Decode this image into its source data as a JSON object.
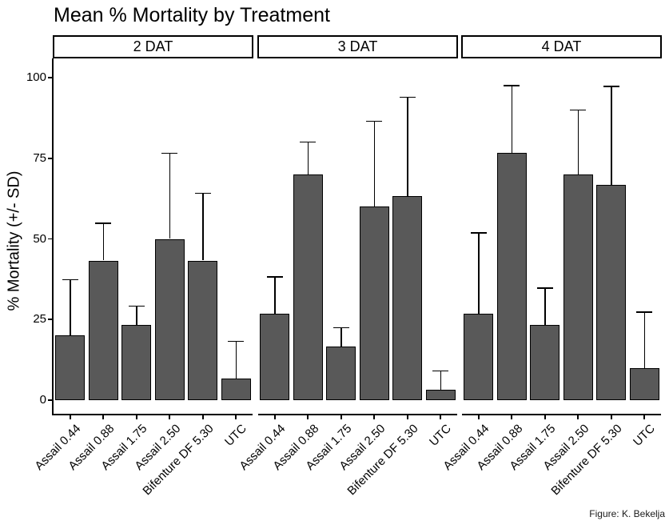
{
  "caption": "Figure: K. Bekelja",
  "colors": {
    "bar_fill": "#595959",
    "bar_outline": "#000000",
    "axis": "#000000",
    "strip_background": "#ffffff",
    "strip_border": "#000000",
    "background": "#ffffff"
  },
  "chart_data": {
    "type": "bar",
    "title": "Mean % Mortality by Treatment",
    "xlabel": "",
    "ylabel": "% Mortality (+/- SD)",
    "ylim": [
      0,
      100
    ],
    "y_ticks": [
      0,
      25,
      50,
      75,
      100
    ],
    "y_tick_labels": [
      "0",
      "25",
      "50",
      "75",
      "100"
    ],
    "grid": false,
    "legend": "none",
    "error_bars": "upper whisker = mean + SD",
    "categories": [
      "Assail 0.44",
      "Assail 0.88",
      "Assail 1.75",
      "Assail 2.50",
      "Bifenture DF 5.30",
      "UTC"
    ],
    "facets": [
      {
        "label": "2 DAT",
        "means": [
          20.0,
          43.3,
          23.3,
          50.0,
          43.3,
          6.7
        ],
        "sd": [
          17.3,
          11.5,
          5.8,
          26.5,
          20.8,
          11.5
        ]
      },
      {
        "label": "3 DAT",
        "means": [
          26.7,
          70.0,
          16.7,
          60.0,
          63.3,
          3.3
        ],
        "sd": [
          11.5,
          10.0,
          5.8,
          26.5,
          30.6,
          5.8
        ]
      },
      {
        "label": "4 DAT",
        "means": [
          26.7,
          76.7,
          23.3,
          70.0,
          66.7,
          10.0
        ],
        "sd": [
          25.2,
          20.8,
          11.5,
          20.0,
          30.6,
          17.3
        ]
      }
    ]
  }
}
